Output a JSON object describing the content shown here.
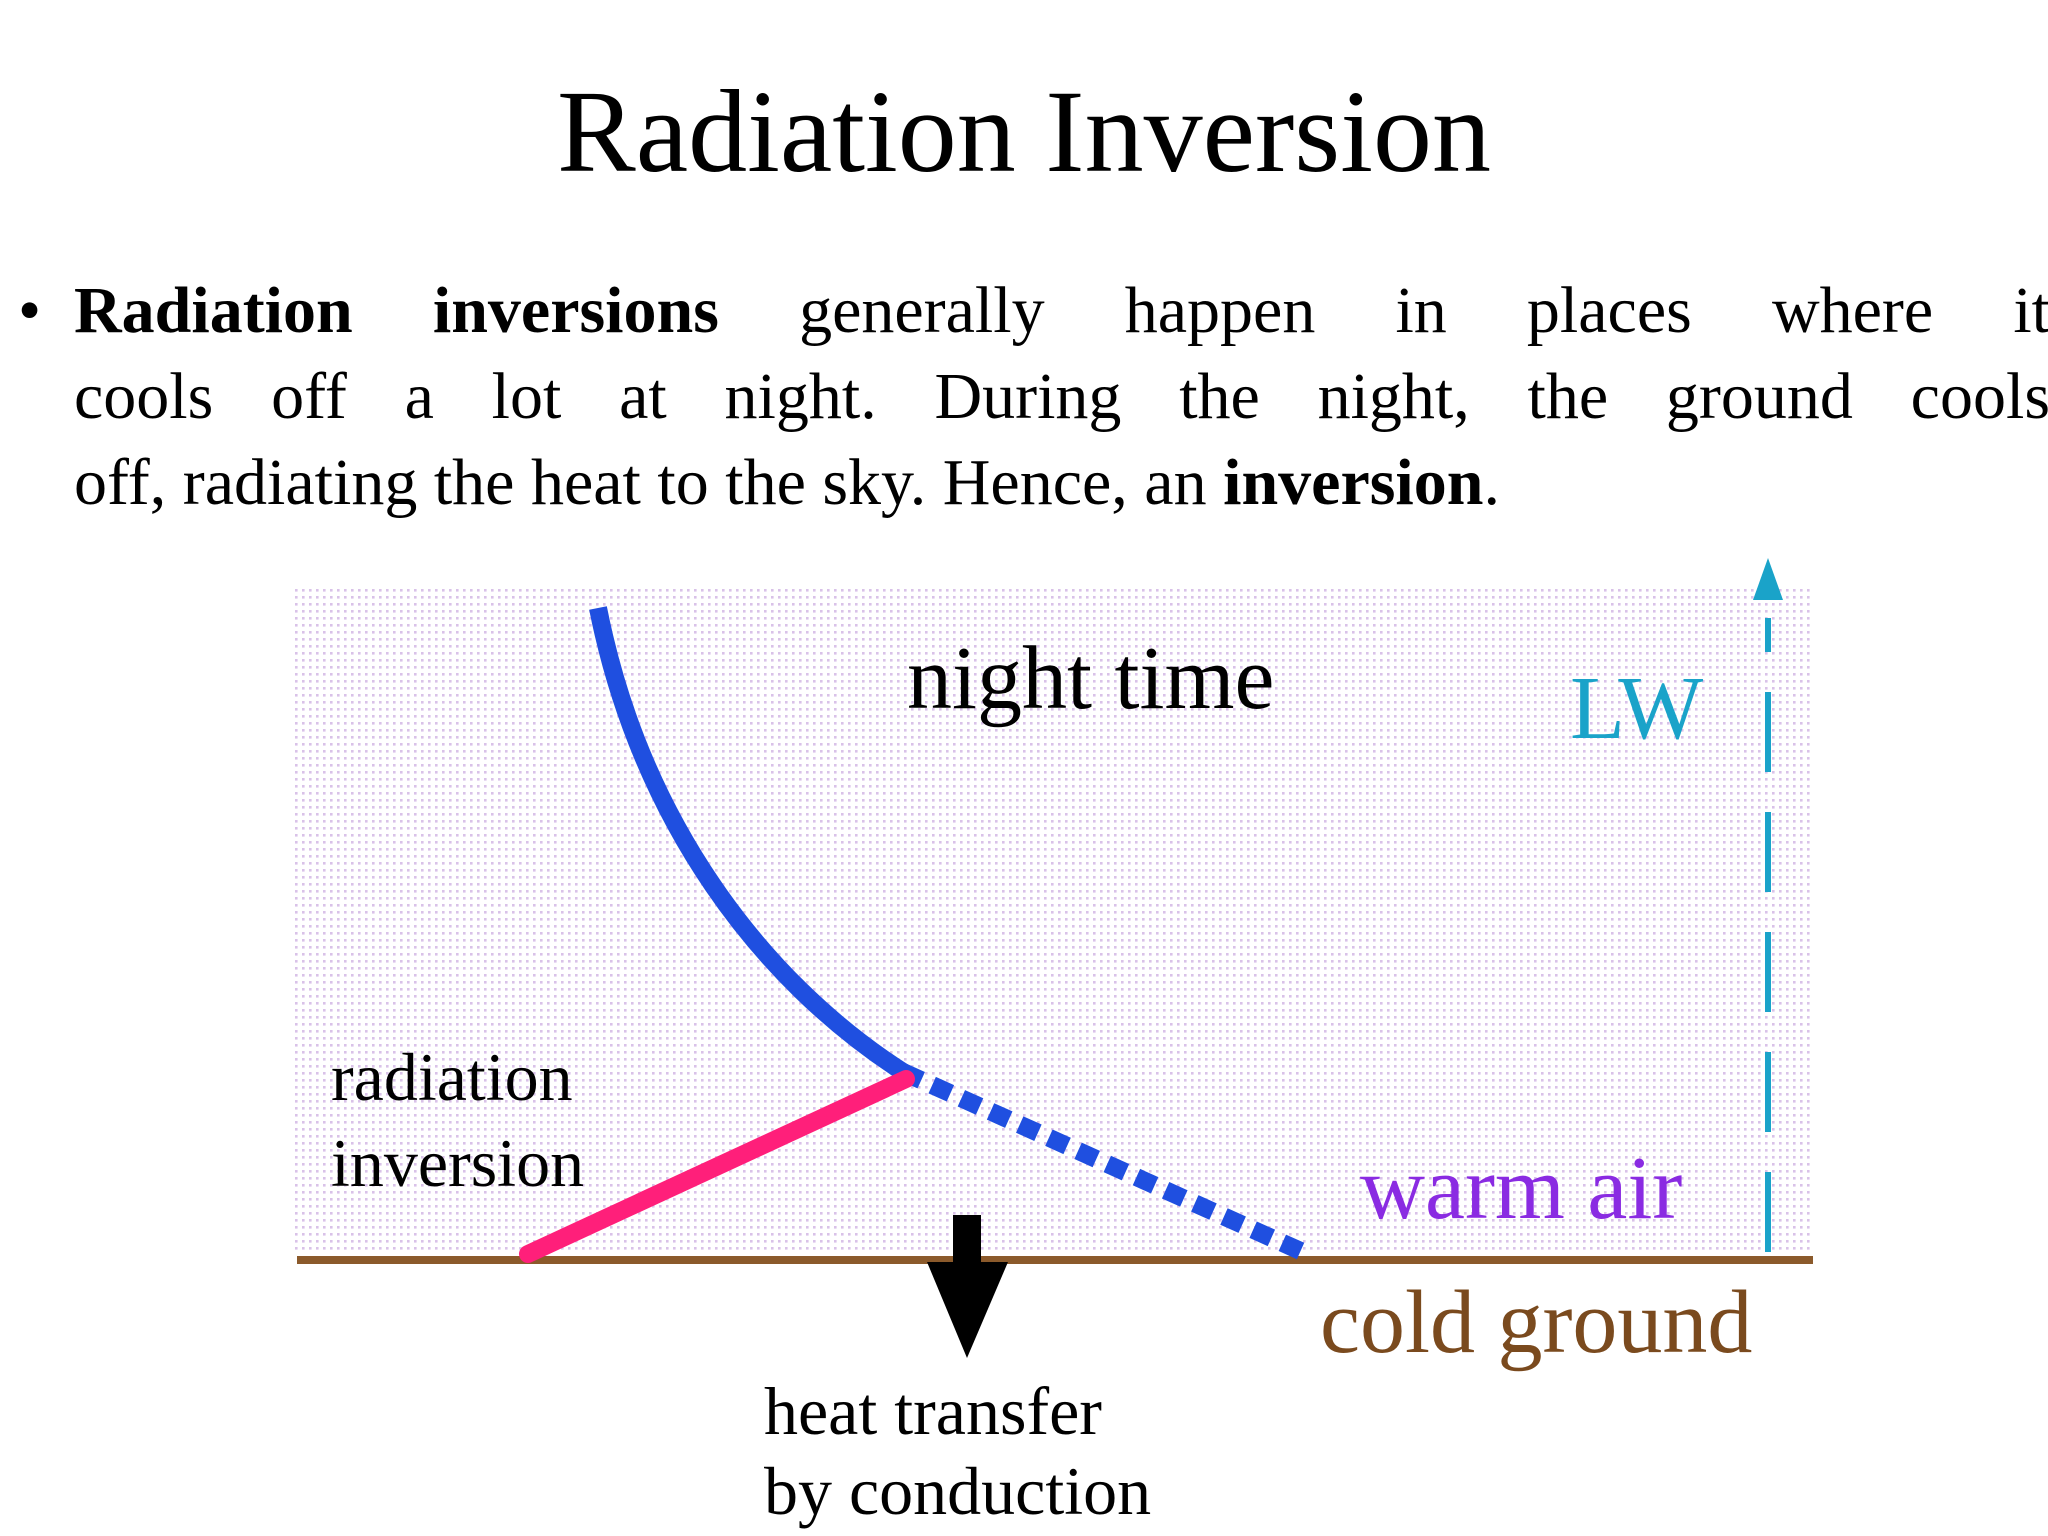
{
  "slide": {
    "title": "Radiation Inversion",
    "bullet": {
      "symbol": "•",
      "line1": {
        "bold_lead": "Radiation inversions",
        "rest": "generally happen in places where it"
      },
      "line2": "cools off a lot at night. During the night, the ground cools",
      "line3": {
        "start": "off, radiating the heat to the sky. Hence, an",
        "bold": "inversion",
        "end": "."
      }
    }
  },
  "diagram": {
    "labels": {
      "night_time": "night time",
      "lw": "LW",
      "radiation_inversion_line1": "radiation",
      "radiation_inversion_line2": "inversion",
      "warm_air": "warm air",
      "cold_ground": "cold ground",
      "heat_transfer_line1": "heat transfer",
      "heat_transfer_line2": "by conduction"
    },
    "colors": {
      "background_dots": "#d9c2e8",
      "temperature_profile": "#1f4fe0",
      "inversion_segment": "#ff1f7a",
      "longwave_arrow": "#1aa3c9",
      "ground_line": "#8b5a2b",
      "lw_label": "#1aa3c9",
      "warm_air_label": "#8a2be2",
      "cold_ground_label": "#7a4a1e",
      "heat_arrow": "#000000"
    },
    "icons": {
      "heat_arrow": "arrow-down-icon",
      "longwave_arrow": "arrow-up-icon"
    }
  }
}
